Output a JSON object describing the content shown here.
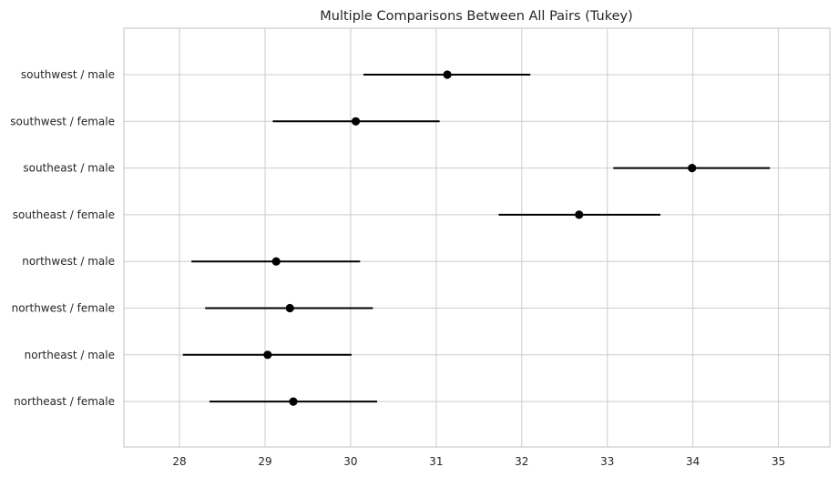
{
  "chart_data": {
    "type": "scatter",
    "title": "Multiple Comparisons Between All Pairs (Tukey)",
    "xlabel": "",
    "ylabel": "",
    "xlim": [
      27.35,
      35.6
    ],
    "xticks": [
      28,
      29,
      30,
      31,
      32,
      33,
      34,
      35
    ],
    "grid": true,
    "series": [
      {
        "groups": [
          {
            "label": "southwest / male",
            "mean": 31.13,
            "lower": 30.15,
            "upper": 32.1
          },
          {
            "label": "southwest / female",
            "mean": 30.06,
            "lower": 29.09,
            "upper": 31.04
          },
          {
            "label": "southeast / male",
            "mean": 33.99,
            "lower": 33.07,
            "upper": 34.9
          },
          {
            "label": "southeast / female",
            "mean": 32.67,
            "lower": 31.73,
            "upper": 33.62
          },
          {
            "label": "northwest / male",
            "mean": 29.13,
            "lower": 28.14,
            "upper": 30.11
          },
          {
            "label": "northwest / female",
            "mean": 29.29,
            "lower": 28.3,
            "upper": 30.26
          },
          {
            "label": "northeast / male",
            "mean": 29.03,
            "lower": 28.04,
            "upper": 30.01
          },
          {
            "label": "northeast / female",
            "mean": 29.33,
            "lower": 28.35,
            "upper": 30.31
          }
        ]
      }
    ]
  }
}
